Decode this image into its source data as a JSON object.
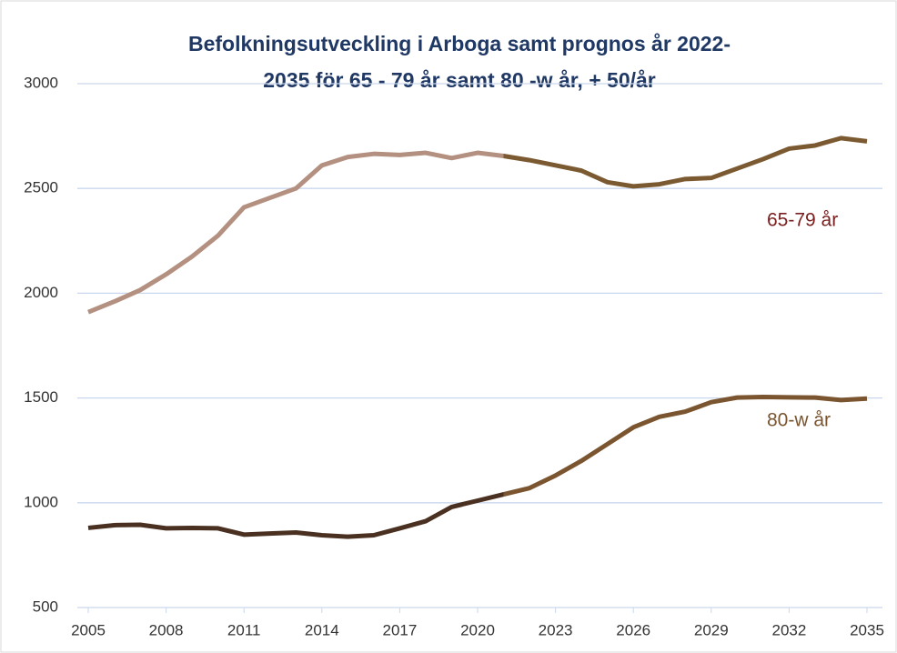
{
  "chart_data": {
    "type": "line",
    "title": [
      "Befolkningsutveckling i Arboga samt prognos år 2022-",
      "2035 för 65 - 79 år samt 80 -w år,  + 50/år"
    ],
    "x": [
      2005,
      2006,
      2007,
      2008,
      2009,
      2010,
      2011,
      2012,
      2013,
      2014,
      2015,
      2016,
      2017,
      2018,
      2019,
      2020,
      2021,
      2022,
      2023,
      2024,
      2025,
      2026,
      2027,
      2028,
      2029,
      2030,
      2031,
      2032,
      2033,
      2034,
      2035
    ],
    "series": [
      {
        "name": "65-79 år",
        "color": "#b39080",
        "forecast_color": "#7b5a32",
        "label_color": "#7a2020",
        "values": [
          1910,
          1960,
          2015,
          2090,
          2175,
          2275,
          2410,
          2455,
          2500,
          2610,
          2650,
          2665,
          2660,
          2670,
          2645,
          2670,
          2655,
          2635,
          2610,
          2585,
          2530,
          2510,
          2520,
          2545,
          2550,
          2595,
          2640,
          2690,
          2705,
          2740,
          2725
        ]
      },
      {
        "name": "80-w år",
        "color": "#4a3020",
        "forecast_color": "#7a5530",
        "label_color": "#7a5530",
        "values": [
          880,
          893,
          895,
          878,
          880,
          878,
          848,
          853,
          858,
          845,
          838,
          845,
          878,
          912,
          980,
          1010,
          1040,
          1070,
          1130,
          1200,
          1280,
          1360,
          1410,
          1435,
          1480,
          1502,
          1505,
          1503,
          1502,
          1490,
          1497
        ]
      }
    ],
    "xlim": [
      2005,
      2035
    ],
    "xticks": [
      2005,
      2008,
      2011,
      2014,
      2017,
      2020,
      2023,
      2026,
      2029,
      2032,
      2035
    ],
    "ylim": [
      500,
      3000
    ],
    "yticks": [
      500,
      1000,
      1500,
      2000,
      2500,
      3000
    ],
    "forecast_from": 2021,
    "grid": true
  }
}
